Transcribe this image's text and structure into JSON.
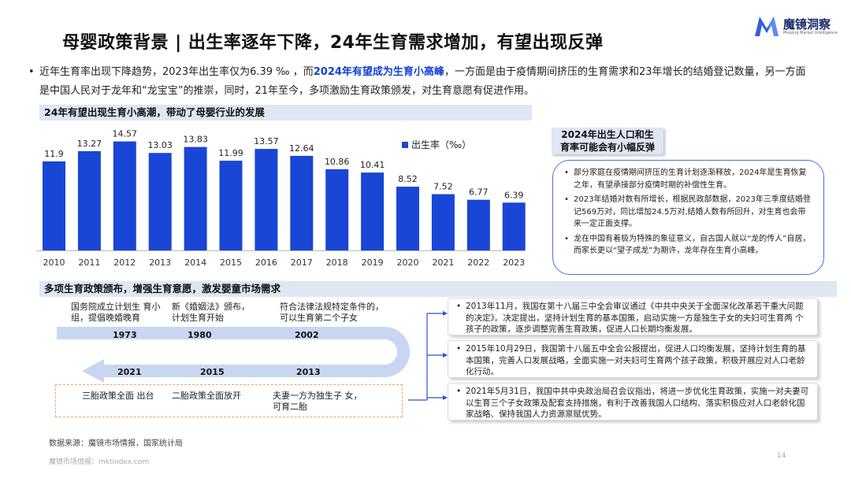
{
  "title": "母婴政策背景 | 出生率逐年下降，24年生育需求增加，有望出现反弹",
  "logo": {
    "name": "魔镜洞察",
    "sub": "Moojing Market Intelligence"
  },
  "intro": {
    "bullet": "•",
    "part1": "近年生育率出现下降趋势，2023年出生率仅为6.39 ‰ ，而",
    "highlight": "2024年有望成为生育小高峰",
    "part2": "，一方面是由于疫情期间挤压的生育需求和23年增长的结婚登记数量，另一方面是中国人民对于龙年和“龙宝宝”的推崇，同时，21年至今，多项激励生育政策颁发，对生育意愿有促进作用。"
  },
  "section1_header": "24年有望出现生育小高潮，带动了母婴行业的发展",
  "section2_header": "多项生育政策颁布，增强生育意愿，激发婴童市场需求",
  "chart_data": {
    "type": "bar",
    "categories": [
      "2010",
      "2011",
      "2012",
      "2013",
      "2014",
      "2015",
      "2016",
      "2017",
      "2018",
      "2019",
      "2020",
      "2021",
      "2022",
      "2023"
    ],
    "series": [
      {
        "name": "出生率（‰）",
        "values": [
          11.9,
          13.27,
          14.57,
          13.03,
          13.83,
          11.99,
          13.57,
          12.64,
          10.86,
          10.41,
          8.52,
          7.52,
          6.77,
          6.39
        ]
      }
    ],
    "data_labels": [
      "11.9",
      "13.27",
      "14.57",
      "13.03",
      "13.83",
      "11.99",
      "13.57",
      "12.64",
      "10.86",
      "10.41",
      "8.52",
      "7.52",
      "6.77",
      "6.39"
    ],
    "ylim": [
      0,
      16
    ],
    "grid": false,
    "legend": "top-right",
    "bar_color": "#1a46d6"
  },
  "side": {
    "tag_line1": "2024年出生人口和生",
    "tag_line2": "育率可能会有小幅反弹",
    "points": [
      "部分家庭在疫情期间挤压的生育计划逐渐释放，2024年是生育恢复之年，有望承接部分疫情时期的补偿性生育。",
      "2023年结婚对数有所增长，根据民政部数据，2023年三季度结婚登记569万对，同比增加24.5万对,结婚人数有所回升，对生育也会带来一定正面支撑。",
      "龙在中国有着极为特殊的象征意义，自古国人就以“龙的传人”自居，而家长更以“望子成龙”为期许，龙年存在生育小高峰。"
    ]
  },
  "timeline": {
    "top": [
      {
        "text1": "国务院成立计划生 育小",
        "text2": "组，提倡晚婚晚育",
        "year": "1973"
      },
      {
        "text1": "新《婚姻法》颁布，",
        "text2": "计划生育开始",
        "year": "1980"
      },
      {
        "text1": "符合法律法规特定条件的，",
        "text2": "可以生育第二个子女",
        "year": "2002"
      }
    ],
    "bottom": [
      {
        "year": "2021",
        "text1": "三胎政策全面 出台",
        "text2": ""
      },
      {
        "year": "2015",
        "text1": "二胎政策全面放开",
        "text2": ""
      },
      {
        "year": "2013",
        "text1": "夫妻一方为独生子 女，",
        "text2": "可育二胎"
      }
    ]
  },
  "events": [
    "2013年11月，我国在第十八届三中全会审议通过《中共中央关于全面深化改革若干重大问题 的决定》。决定提出，坚持计划生育的基本国策，启动实施一方是独生子女的夫妇可生育两 个孩子的政策，逐步调整完善生育政策，促进人口长期均衡发展。",
    "2015年10月29日，我国第十八届五中全会公报提出，促进人口均衡发展，坚持计划生育的基本国策，完善人口发展战略，全面实施一对夫妇可生育两个孩子政策，积极开展应对人口老龄化行动。",
    "2021年5月31日，我国中共中央政治局召会议指出，将进一步优化生育政策，实施一对夫妻可以生育三个子女政策及配套支持措施，有利于改善我国人口结构、落实积极应对人口老龄化国家战略、保持我国人力资源禀赋优势。"
  ],
  "source": "数据来源：魔镜市场情报，国家统计局",
  "footer": "魔镜市场情报：mktindex.com",
  "page_number": "14",
  "colors": {
    "accent": "#1a46d6",
    "header_bg": "#dfe6f4",
    "timeline": "#c9d6f2",
    "dash": "#f0a070",
    "connector": "#2b55c8"
  }
}
